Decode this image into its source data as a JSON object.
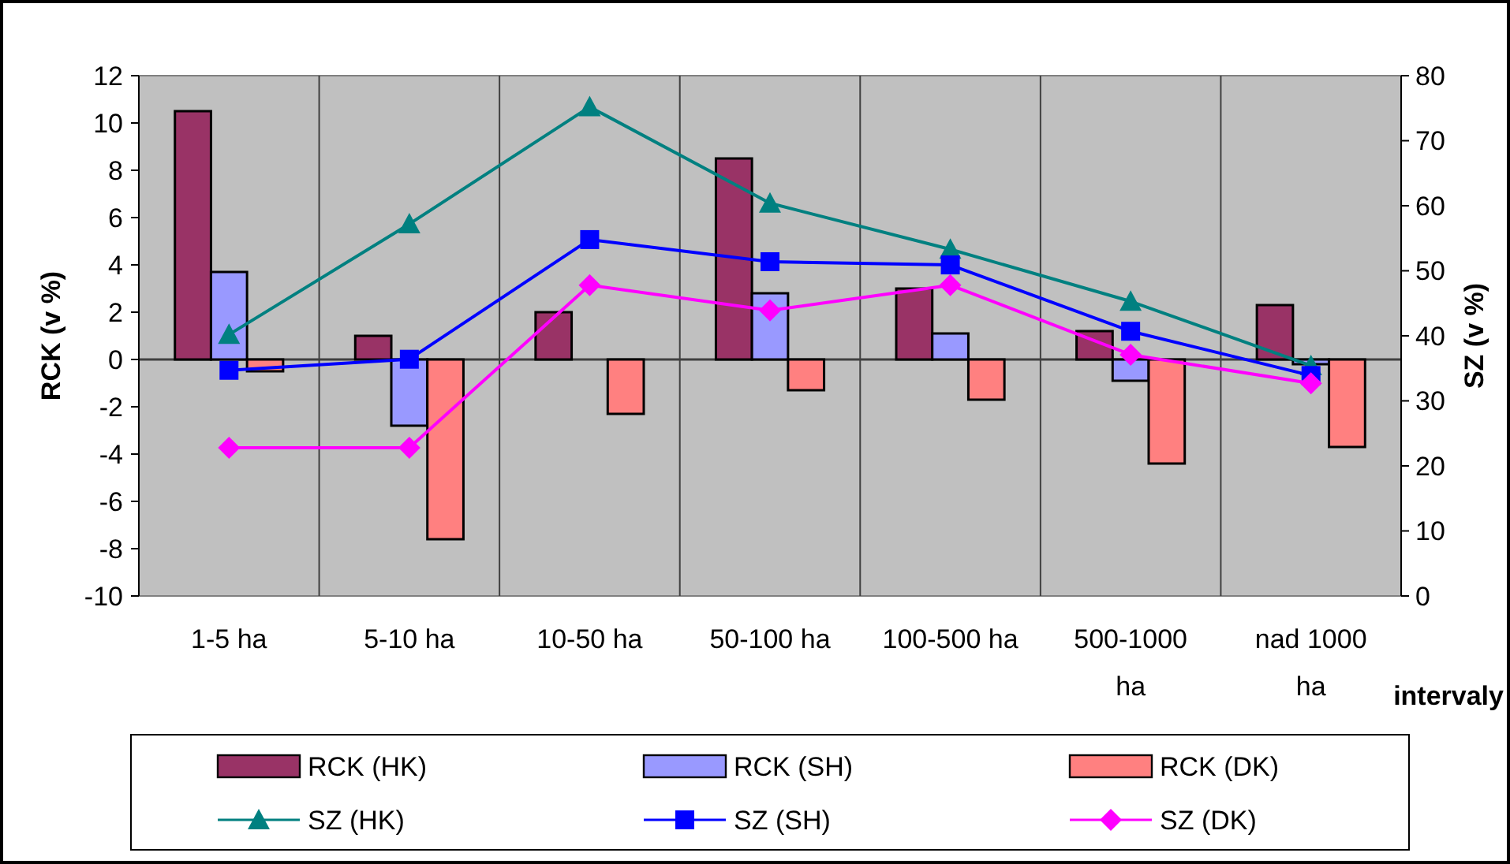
{
  "chart_data": {
    "type": "bar",
    "xlabel": "intervaly",
    "ylabel": "RCK (v %)",
    "y2label": "SZ (v %)",
    "categories": [
      "1-5 ha",
      "5-10 ha",
      "10-50 ha",
      "50-100 ha",
      "100-500 ha",
      "500-1000 ha",
      "nad 1000 ha"
    ],
    "series": [
      {
        "name": "RCK (HK)",
        "color": "#993366",
        "values": [
          10.5,
          1,
          2,
          8.5,
          3,
          1.2,
          2.3
        ]
      },
      {
        "name": "RCK (SH)",
        "color": "#9999ff",
        "values": [
          3.7,
          -2.8,
          0,
          2.8,
          1.1,
          -0.9,
          -0.2
        ]
      },
      {
        "name": "RCK (DK)",
        "color": "#ff8080",
        "values": [
          -0.5,
          -7.6,
          -2.3,
          -1.3,
          -1.7,
          -4.4,
          -3.7
        ]
      },
      {
        "name": "SZ (HK)",
        "type": "line",
        "axis": "y2",
        "marker": "triangle",
        "color": "#008080",
        "values": [
          40.2,
          57.2,
          75.2,
          60.4,
          53.3,
          45.3,
          35.4
        ]
      },
      {
        "name": "SZ (SH)",
        "type": "line",
        "axis": "y2",
        "marker": "square",
        "color": "#0000ff",
        "values": [
          34.7,
          36.4,
          54.8,
          51.4,
          50.9,
          40.7,
          33.9
        ]
      },
      {
        "name": "SZ (DK)",
        "type": "line",
        "axis": "y2",
        "marker": "diamond",
        "color": "#ff00ff",
        "values": [
          22.8,
          22.8,
          47.8,
          43.9,
          47.8,
          37.1,
          32.7
        ]
      }
    ],
    "ylim": [
      -10,
      12
    ],
    "yticks": [
      -10,
      -8,
      -6,
      -4,
      -2,
      0,
      2,
      4,
      6,
      8,
      10,
      12
    ],
    "y2lim": [
      0,
      80
    ],
    "y2ticks": [
      0,
      10,
      20,
      30,
      40,
      50,
      60,
      70,
      80
    ],
    "grid": "x",
    "legend": "bottom"
  }
}
